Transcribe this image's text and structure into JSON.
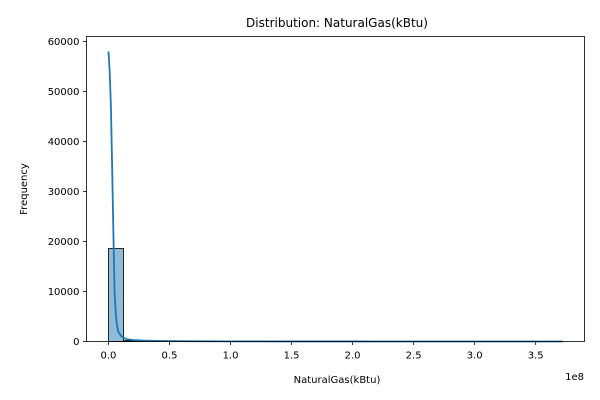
{
  "chart_data": {
    "type": "histogram",
    "title": "Distribution: NaturalGas(kBtu)",
    "xlabel": "NaturalGas(kBtu)",
    "ylabel": "Frequency",
    "x_offset_label": "1e8",
    "xlim": [
      -0.18,
      3.9
    ],
    "ylim": [
      0,
      61000
    ],
    "x_unit_scale": 100000000,
    "xticks": [
      0,
      0.5,
      1.0,
      1.5,
      2.0,
      2.5,
      3.0,
      3.5
    ],
    "xtick_labels": [
      "0.0",
      "0.5",
      "1.0",
      "1.5",
      "2.0",
      "2.5",
      "3.0",
      "3.5"
    ],
    "yticks": [
      0,
      10000,
      20000,
      30000,
      40000,
      50000,
      60000
    ],
    "ytick_labels": [
      "0",
      "10000",
      "20000",
      "30000",
      "40000",
      "50000",
      "60000"
    ],
    "bin_width": 0.124,
    "bins": [
      {
        "start": 0.0,
        "count": 18600
      },
      {
        "start": 0.124,
        "count": 180
      },
      {
        "start": 0.248,
        "count": 60
      },
      {
        "start": 0.372,
        "count": 25
      },
      {
        "start": 0.496,
        "count": 12
      },
      {
        "start": 0.62,
        "count": 8
      },
      {
        "start": 0.744,
        "count": 5
      },
      {
        "start": 0.868,
        "count": 4
      },
      {
        "start": 0.992,
        "count": 3
      },
      {
        "start": 1.116,
        "count": 2
      },
      {
        "start": 1.24,
        "count": 2
      },
      {
        "start": 1.364,
        "count": 1
      },
      {
        "start": 1.488,
        "count": 1
      },
      {
        "start": 1.612,
        "count": 1
      },
      {
        "start": 1.736,
        "count": 1
      },
      {
        "start": 1.86,
        "count": 1
      },
      {
        "start": 1.984,
        "count": 1
      },
      {
        "start": 2.108,
        "count": 1
      },
      {
        "start": 2.232,
        "count": 1
      },
      {
        "start": 2.356,
        "count": 1
      },
      {
        "start": 2.48,
        "count": 1
      },
      {
        "start": 2.604,
        "count": 1
      },
      {
        "start": 2.728,
        "count": 1
      },
      {
        "start": 2.852,
        "count": 1
      },
      {
        "start": 2.976,
        "count": 1
      },
      {
        "start": 3.1,
        "count": 1
      },
      {
        "start": 3.224,
        "count": 1
      },
      {
        "start": 3.348,
        "count": 1
      },
      {
        "start": 3.472,
        "count": 1
      },
      {
        "start": 3.596,
        "count": 1
      }
    ],
    "kde": {
      "x": [
        0.0,
        0.01,
        0.02,
        0.03,
        0.04,
        0.05,
        0.06,
        0.07,
        0.08,
        0.1,
        0.12,
        0.15,
        0.2,
        0.3,
        0.4,
        0.6,
        1.0,
        1.5,
        2.0,
        2.5,
        3.0,
        3.5,
        3.72
      ],
      "y": [
        58000,
        54000,
        47000,
        35000,
        22000,
        10000,
        5500,
        3200,
        2000,
        1200,
        800,
        450,
        300,
        180,
        110,
        60,
        30,
        15,
        10,
        5,
        3,
        2,
        0
      ]
    },
    "colors": {
      "bar_fill": "#1f77b4",
      "bar_fill_opacity": "0.5",
      "bar_edge": "#000000",
      "kde_line": "#1f77b4"
    },
    "grid": false,
    "legend": "none"
  }
}
